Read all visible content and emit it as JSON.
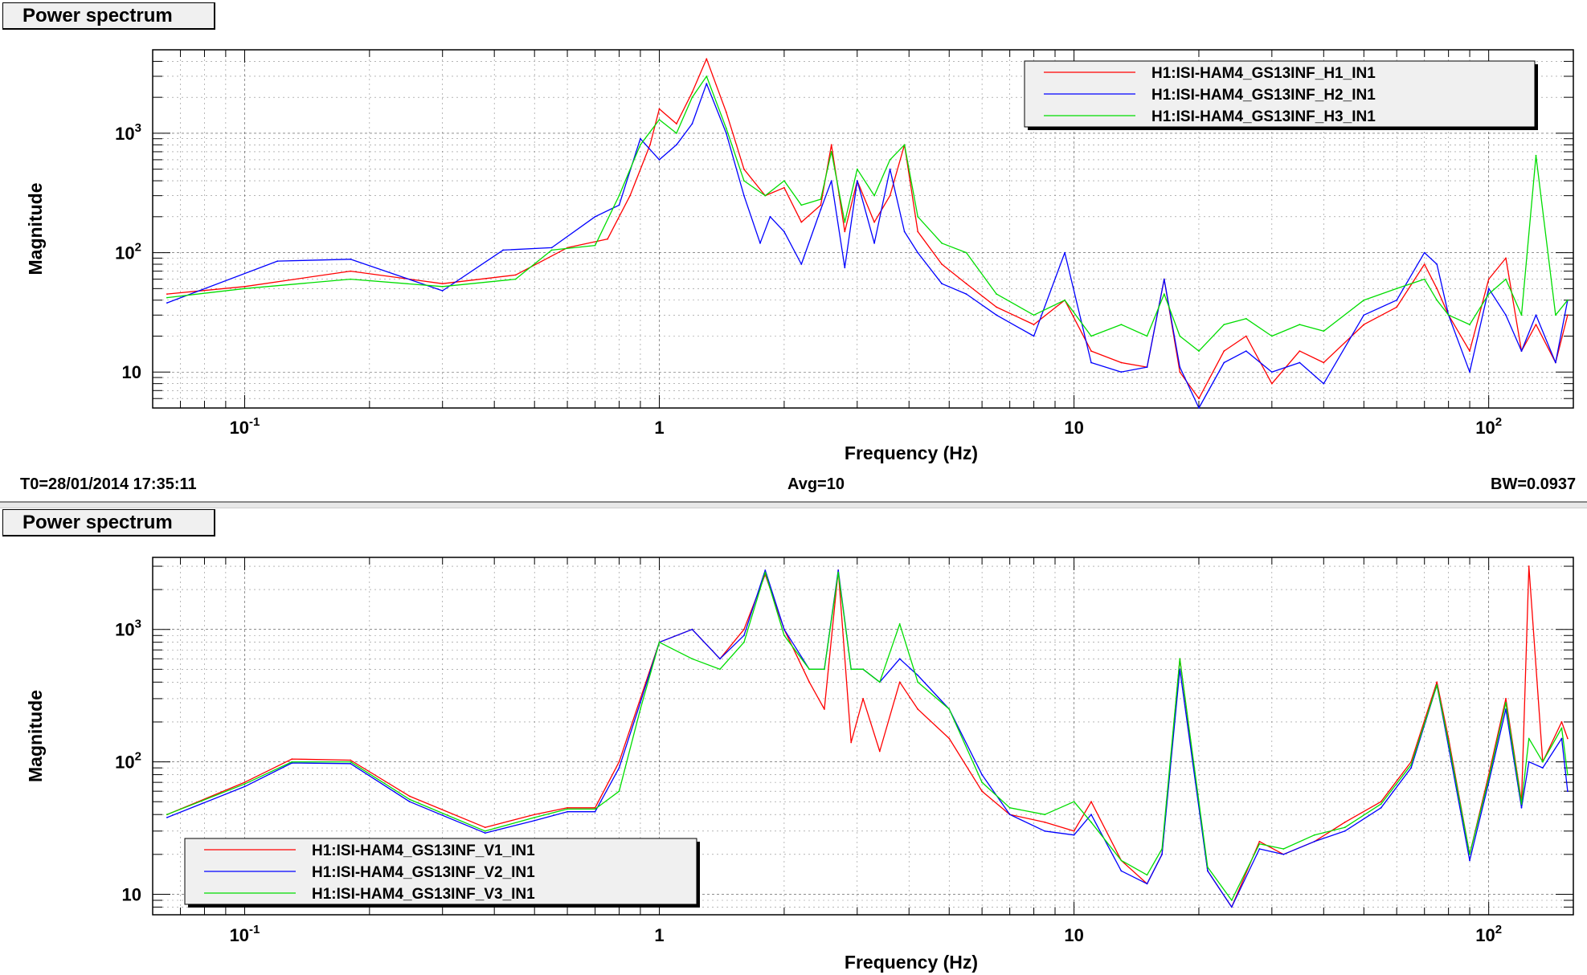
{
  "panels": [
    {
      "title": "Power spectrum",
      "xlabel": "Frequency (Hz)",
      "ylabel": "Magnitude",
      "legend": [
        "H1:ISI-HAM4_GS13INF_H1_IN1",
        "H1:ISI-HAM4_GS13INF_H2_IN1",
        "H1:ISI-HAM4_GS13INF_H3_IN1"
      ]
    },
    {
      "title": "Power spectrum",
      "xlabel": "Frequency (Hz)",
      "ylabel": "Magnitude",
      "legend": [
        "H1:ISI-HAM4_GS13INF_V1_IN1",
        "H1:ISI-HAM4_GS13INF_V2_IN1",
        "H1:ISI-HAM4_GS13INF_V3_IN1"
      ]
    }
  ],
  "status": {
    "t0": "T0=28/01/2014 17:35:11",
    "avg": "Avg=10",
    "bw": "BW=0.0937"
  },
  "colors": {
    "series1": "#ff0000",
    "series2": "#0000ff",
    "series3": "#00dd00"
  },
  "chart_data": [
    {
      "type": "line",
      "title": "Power spectrum",
      "xlabel": "Frequency (Hz)",
      "ylabel": "Magnitude",
      "xscale": "log",
      "yscale": "log",
      "xlim": [
        0.06,
        160
      ],
      "ylim": [
        5,
        5000
      ],
      "xticks": [
        "10-1",
        "1",
        "10",
        "102"
      ],
      "yticks": [
        "10",
        "102",
        "103"
      ],
      "grid": true,
      "legend_position": "top-right",
      "series": [
        {
          "name": "H1:ISI-HAM4_GS13INF_H1_IN1",
          "color": "#ff0000",
          "x": [
            0.065,
            0.1,
            0.18,
            0.3,
            0.45,
            0.6,
            0.75,
            0.85,
            0.95,
            1.0,
            1.1,
            1.2,
            1.3,
            1.45,
            1.6,
            1.8,
            2.0,
            2.2,
            2.45,
            2.6,
            2.8,
            3.0,
            3.3,
            3.6,
            3.9,
            4.2,
            4.8,
            5.5,
            6.5,
            8,
            9.5,
            11,
            13,
            15,
            16.5,
            18,
            20,
            23,
            26,
            30,
            35,
            40,
            50,
            60,
            70,
            75,
            80,
            90,
            100,
            110,
            120,
            130,
            145,
            155
          ],
          "y": [
            45,
            52,
            70,
            55,
            65,
            110,
            130,
            300,
            800,
            1600,
            1200,
            2200,
            4200,
            1500,
            500,
            300,
            350,
            180,
            250,
            800,
            150,
            400,
            180,
            300,
            800,
            150,
            80,
            55,
            35,
            25,
            40,
            15,
            12,
            11,
            60,
            10,
            6,
            15,
            20,
            8,
            15,
            12,
            25,
            35,
            80,
            50,
            30,
            15,
            60,
            90,
            15,
            25,
            12,
            30
          ]
        },
        {
          "name": "H1:ISI-HAM4_GS13INF_H2_IN1",
          "color": "#0000ff",
          "x": [
            0.065,
            0.12,
            0.18,
            0.3,
            0.42,
            0.55,
            0.7,
            0.8,
            0.9,
            1.0,
            1.1,
            1.2,
            1.3,
            1.45,
            1.6,
            1.75,
            1.85,
            2.0,
            2.2,
            2.45,
            2.6,
            2.8,
            3.0,
            3.3,
            3.6,
            3.9,
            4.2,
            4.8,
            5.5,
            6.5,
            8,
            9.5,
            11,
            13,
            15,
            16.5,
            18,
            20,
            23,
            26,
            30,
            35,
            40,
            50,
            60,
            70,
            75,
            80,
            90,
            100,
            110,
            120,
            130,
            145,
            155
          ],
          "y": [
            38,
            85,
            88,
            48,
            105,
            110,
            200,
            250,
            900,
            600,
            800,
            1200,
            2600,
            1000,
            300,
            120,
            200,
            150,
            80,
            230,
            400,
            75,
            400,
            120,
            500,
            150,
            100,
            55,
            45,
            30,
            20,
            100,
            12,
            10,
            11,
            60,
            11,
            5,
            12,
            15,
            10,
            12,
            8,
            30,
            40,
            100,
            80,
            30,
            10,
            50,
            30,
            15,
            30,
            12,
            40
          ]
        },
        {
          "name": "H1:ISI-HAM4_GS13INF_H3_IN1",
          "color": "#00dd00",
          "x": [
            0.065,
            0.1,
            0.18,
            0.3,
            0.45,
            0.55,
            0.7,
            0.8,
            0.9,
            1.0,
            1.1,
            1.2,
            1.3,
            1.45,
            1.6,
            1.8,
            2.0,
            2.2,
            2.45,
            2.6,
            2.8,
            3.0,
            3.3,
            3.6,
            3.9,
            4.2,
            4.8,
            5.5,
            6.5,
            8,
            9.5,
            11,
            13,
            15,
            16.5,
            18,
            20,
            23,
            26,
            30,
            35,
            40,
            50,
            60,
            70,
            75,
            80,
            90,
            100,
            110,
            120,
            130,
            145,
            155
          ],
          "y": [
            42,
            50,
            60,
            52,
            60,
            105,
            115,
            300,
            800,
            1300,
            1000,
            2000,
            3000,
            1100,
            400,
            300,
            400,
            250,
            280,
            700,
            180,
            500,
            300,
            600,
            800,
            200,
            120,
            100,
            45,
            30,
            40,
            20,
            25,
            20,
            45,
            20,
            15,
            25,
            28,
            20,
            25,
            22,
            40,
            50,
            60,
            40,
            30,
            25,
            45,
            60,
            30,
            650,
            30,
            40
          ]
        }
      ]
    },
    {
      "type": "line",
      "title": "Power spectrum",
      "xlabel": "Frequency (Hz)",
      "ylabel": "Magnitude",
      "xscale": "log",
      "yscale": "log",
      "xlim": [
        0.06,
        160
      ],
      "ylim": [
        7,
        3500
      ],
      "xticks": [
        "10-1",
        "1",
        "10",
        "102"
      ],
      "yticks": [
        "10",
        "102",
        "103"
      ],
      "grid": true,
      "legend_position": "bottom-left",
      "series": [
        {
          "name": "H1:ISI-HAM4_GS13INF_V1_IN1",
          "color": "#ff0000",
          "x": [
            0.065,
            0.1,
            0.13,
            0.18,
            0.25,
            0.38,
            0.5,
            0.6,
            0.7,
            0.8,
            0.9,
            1.0,
            1.2,
            1.4,
            1.6,
            1.8,
            2.0,
            2.3,
            2.5,
            2.7,
            2.9,
            3.1,
            3.4,
            3.8,
            4.2,
            5.0,
            6.0,
            7.0,
            8.5,
            10,
            11,
            13,
            15,
            16.3,
            18,
            21,
            24,
            28,
            32,
            38,
            45,
            55,
            65,
            75,
            80,
            90,
            100,
            110,
            120,
            125,
            135,
            150,
            155
          ],
          "y": [
            40,
            70,
            105,
            103,
            55,
            32,
            40,
            45,
            45,
            100,
            300,
            800,
            1000,
            600,
            1000,
            2600,
            1000,
            400,
            250,
            2800,
            140,
            300,
            120,
            400,
            250,
            150,
            60,
            40,
            35,
            30,
            50,
            18,
            12,
            20,
            600,
            15,
            8,
            25,
            20,
            25,
            35,
            50,
            100,
            400,
            150,
            20,
            80,
            300,
            50,
            3000,
            100,
            200,
            150
          ]
        },
        {
          "name": "H1:ISI-HAM4_GS13INF_V2_IN1",
          "color": "#0000ff",
          "x": [
            0.065,
            0.1,
            0.13,
            0.18,
            0.25,
            0.38,
            0.5,
            0.6,
            0.7,
            0.8,
            0.9,
            1.0,
            1.2,
            1.4,
            1.6,
            1.8,
            2.0,
            2.3,
            2.5,
            2.7,
            2.9,
            3.1,
            3.4,
            3.8,
            4.2,
            5.0,
            6.0,
            7.0,
            8.5,
            10,
            11,
            13,
            15,
            16.3,
            18,
            21,
            24,
            28,
            32,
            38,
            45,
            55,
            65,
            75,
            80,
            90,
            100,
            110,
            120,
            125,
            135,
            150,
            155
          ],
          "y": [
            38,
            65,
            98,
            97,
            50,
            29,
            36,
            42,
            42,
            90,
            280,
            800,
            1000,
            600,
            900,
            2800,
            1000,
            500,
            500,
            2800,
            500,
            500,
            400,
            600,
            450,
            250,
            80,
            40,
            30,
            28,
            40,
            15,
            12,
            20,
            500,
            15,
            8,
            22,
            20,
            25,
            30,
            45,
            90,
            380,
            130,
            18,
            70,
            250,
            45,
            100,
            90,
            150,
            60
          ]
        },
        {
          "name": "H1:ISI-HAM4_GS13INF_V3_IN1",
          "color": "#00dd00",
          "x": [
            0.065,
            0.1,
            0.13,
            0.18,
            0.25,
            0.38,
            0.5,
            0.6,
            0.7,
            0.8,
            0.9,
            1.0,
            1.2,
            1.4,
            1.6,
            1.8,
            2.0,
            2.3,
            2.5,
            2.7,
            2.9,
            3.1,
            3.4,
            3.8,
            4.2,
            5.0,
            6.0,
            7.0,
            8.5,
            10,
            11,
            13,
            15,
            16.3,
            18,
            21,
            24,
            28,
            32,
            38,
            45,
            55,
            65,
            75,
            80,
            90,
            100,
            110,
            120,
            125,
            135,
            150,
            155
          ],
          "y": [
            40,
            68,
            100,
            100,
            52,
            30,
            38,
            44,
            44,
            60,
            250,
            800,
            600,
            500,
            800,
            2700,
            900,
            500,
            500,
            2700,
            500,
            500,
            400,
            1100,
            400,
            250,
            70,
            45,
            40,
            50,
            35,
            18,
            14,
            22,
            600,
            16,
            9,
            24,
            22,
            28,
            32,
            48,
            95,
            380,
            140,
            20,
            75,
            280,
            48,
            150,
            100,
            180,
            80
          ]
        }
      ]
    }
  ]
}
